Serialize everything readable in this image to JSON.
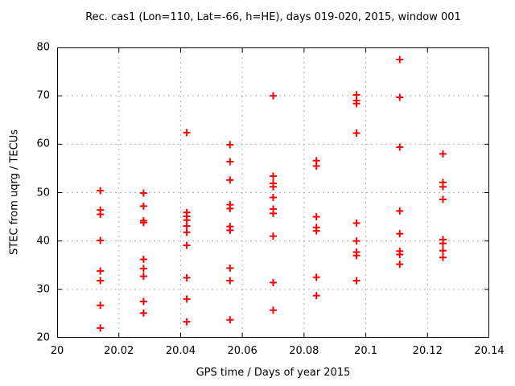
{
  "colors": {
    "background": "#ffffff",
    "marker": "#ff0000",
    "grid": "#b4b4b4",
    "axis": "#000000"
  },
  "chart_data": {
    "type": "scatter",
    "title": "Rec. cas1 (Lon=110, Lat=-66, h=HE), days 019-020, 2015, window 001",
    "xlabel": "GPS time / Days of year 2015",
    "ylabel": "STEC from uqrg / TECUs",
    "xlim": [
      20,
      20.14
    ],
    "ylim": [
      20,
      80
    ],
    "xticks": [
      20,
      20.02,
      20.04,
      20.06,
      20.08,
      20.1,
      20.12,
      20.14
    ],
    "xtick_labels": [
      "20",
      "20.02",
      "20.04",
      "20.06",
      "20.08",
      "20.1",
      "20.12",
      "20.14"
    ],
    "yticks": [
      20,
      30,
      40,
      50,
      60,
      70,
      80
    ],
    "ytick_labels": [
      "20",
      "30",
      "40",
      "50",
      "60",
      "70",
      "80"
    ],
    "grid": true,
    "legend_position": "none",
    "marker": {
      "shape": "plus",
      "size": 9,
      "stroke_width": 2
    },
    "series": [
      {
        "name": "STEC",
        "points": [
          [
            20.014,
            50.4
          ],
          [
            20.014,
            46.4
          ],
          [
            20.014,
            45.5
          ],
          [
            20.014,
            40.1
          ],
          [
            20.014,
            33.8
          ],
          [
            20.014,
            31.8
          ],
          [
            20.014,
            26.7
          ],
          [
            20.014,
            22.0
          ],
          [
            20.028,
            49.9
          ],
          [
            20.028,
            47.2
          ],
          [
            20.028,
            44.2
          ],
          [
            20.028,
            43.8
          ],
          [
            20.028,
            36.2
          ],
          [
            20.028,
            34.3
          ],
          [
            20.028,
            32.7
          ],
          [
            20.028,
            27.5
          ],
          [
            20.028,
            25.1
          ],
          [
            20.042,
            62.4
          ],
          [
            20.042,
            45.9
          ],
          [
            20.042,
            45.1
          ],
          [
            20.042,
            44.3
          ],
          [
            20.042,
            43.1
          ],
          [
            20.042,
            41.8
          ],
          [
            20.042,
            39.1
          ],
          [
            20.042,
            32.4
          ],
          [
            20.042,
            28.0
          ],
          [
            20.042,
            23.3
          ],
          [
            20.056,
            59.9
          ],
          [
            20.056,
            56.4
          ],
          [
            20.056,
            52.6
          ],
          [
            20.056,
            47.5
          ],
          [
            20.056,
            46.7
          ],
          [
            20.056,
            43.0
          ],
          [
            20.056,
            42.2
          ],
          [
            20.056,
            34.4
          ],
          [
            20.056,
            31.8
          ],
          [
            20.056,
            23.7
          ],
          [
            20.07,
            70.0
          ],
          [
            20.07,
            53.4
          ],
          [
            20.07,
            51.9
          ],
          [
            20.07,
            51.2
          ],
          [
            20.07,
            49.0
          ],
          [
            20.07,
            46.6
          ],
          [
            20.07,
            45.7
          ],
          [
            20.07,
            41.0
          ],
          [
            20.07,
            31.4
          ],
          [
            20.07,
            25.7
          ],
          [
            20.084,
            56.6
          ],
          [
            20.084,
            55.5
          ],
          [
            20.084,
            45.0
          ],
          [
            20.084,
            42.8
          ],
          [
            20.084,
            42.1
          ],
          [
            20.084,
            32.5
          ],
          [
            20.084,
            28.7
          ],
          [
            20.097,
            70.2
          ],
          [
            20.097,
            69.0
          ],
          [
            20.097,
            68.4
          ],
          [
            20.097,
            62.3
          ],
          [
            20.097,
            43.7
          ],
          [
            20.097,
            40.0
          ],
          [
            20.097,
            37.7
          ],
          [
            20.097,
            37.0
          ],
          [
            20.097,
            31.8
          ],
          [
            20.111,
            77.5
          ],
          [
            20.111,
            69.7
          ],
          [
            20.111,
            59.4
          ],
          [
            20.111,
            46.2
          ],
          [
            20.111,
            41.5
          ],
          [
            20.111,
            37.9
          ],
          [
            20.111,
            37.2
          ],
          [
            20.111,
            35.2
          ],
          [
            20.125,
            58.0
          ],
          [
            20.125,
            52.1
          ],
          [
            20.125,
            51.2
          ],
          [
            20.125,
            48.6
          ],
          [
            20.125,
            40.3
          ],
          [
            20.125,
            39.5
          ],
          [
            20.125,
            38.0
          ],
          [
            20.125,
            36.6
          ]
        ]
      }
    ]
  }
}
